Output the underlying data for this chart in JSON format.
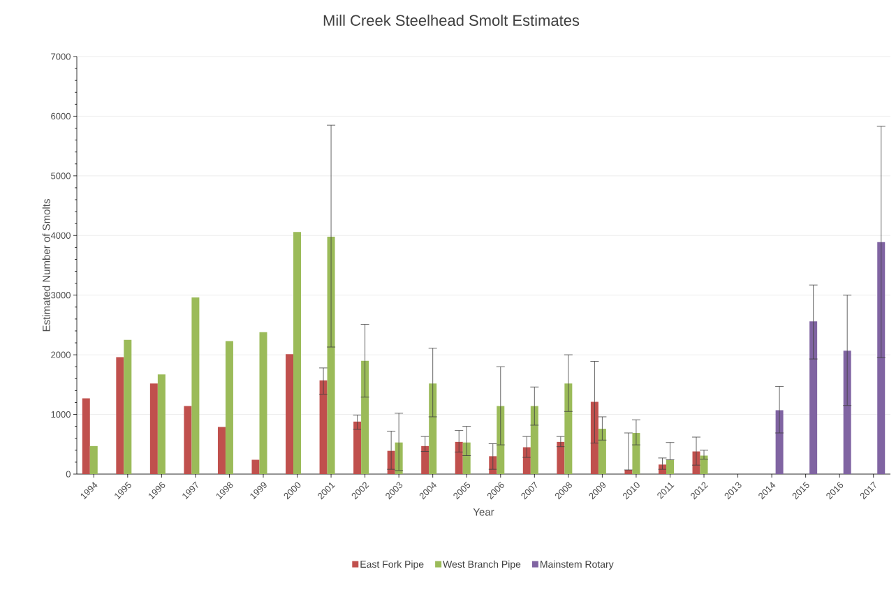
{
  "chart_data": {
    "type": "bar",
    "title": "Mill Creek Steelhead Smolt Estimates",
    "xlabel": "Year",
    "ylabel": "Estimated Number of Smolts",
    "categories": [
      "1994",
      "1995",
      "1996",
      "1997",
      "1998",
      "1999",
      "2000",
      "2001",
      "2002",
      "2003",
      "2004",
      "2005",
      "2006",
      "2007",
      "2008",
      "2009",
      "2010",
      "2011",
      "2012",
      "2013",
      "2014",
      "2015",
      "2016",
      "2017"
    ],
    "series": [
      {
        "name": "East Fork Pipe",
        "color": "#c0504d",
        "values": [
          1270,
          1960,
          1520,
          1140,
          790,
          240,
          2010,
          1570,
          880,
          390,
          470,
          540,
          300,
          450,
          540,
          1210,
          70,
          160,
          380,
          null,
          null,
          null,
          null,
          null
        ],
        "errors": [
          null,
          null,
          null,
          null,
          null,
          null,
          null,
          [
            1340,
            1780
          ],
          [
            750,
            990
          ],
          [
            80,
            720
          ],
          [
            380,
            630
          ],
          [
            370,
            730
          ],
          [
            80,
            510
          ],
          [
            280,
            630
          ],
          [
            460,
            630
          ],
          [
            520,
            1890
          ],
          [
            70,
            690
          ],
          [
            80,
            270
          ],
          [
            150,
            620
          ],
          null,
          null,
          null,
          null,
          null
        ]
      },
      {
        "name": "West Branch Pipe",
        "color": "#9bbb59",
        "values": [
          470,
          2250,
          1670,
          2960,
          2230,
          2380,
          4060,
          3980,
          1900,
          530,
          1520,
          530,
          1140,
          1140,
          1520,
          760,
          690,
          240,
          310,
          null,
          null,
          null,
          null,
          null
        ],
        "errors": [
          null,
          null,
          null,
          null,
          null,
          null,
          null,
          [
            2130,
            5850
          ],
          [
            1290,
            2510
          ],
          [
            60,
            1020
          ],
          [
            960,
            2110
          ],
          [
            310,
            800
          ],
          [
            490,
            1800
          ],
          [
            820,
            1460
          ],
          [
            1050,
            2000
          ],
          [
            570,
            960
          ],
          [
            490,
            910
          ],
          [
            240,
            530
          ],
          [
            250,
            400
          ],
          null,
          null,
          null,
          null,
          null
        ]
      },
      {
        "name": "Mainstem Rotary",
        "color": "#8064a2",
        "values": [
          null,
          null,
          null,
          null,
          null,
          null,
          null,
          null,
          null,
          null,
          null,
          null,
          null,
          null,
          null,
          null,
          null,
          null,
          null,
          null,
          1070,
          2560,
          2070,
          3890
        ],
        "errors": [
          null,
          null,
          null,
          null,
          null,
          null,
          null,
          null,
          null,
          null,
          null,
          null,
          null,
          null,
          null,
          null,
          null,
          null,
          null,
          null,
          [
            690,
            1470
          ],
          [
            1930,
            3170
          ],
          [
            1150,
            3000
          ],
          [
            1950,
            5830
          ]
        ]
      }
    ],
    "ylim": [
      0,
      7000
    ],
    "yticks": [
      0,
      1000,
      2000,
      3000,
      4000,
      5000,
      6000,
      7000
    ],
    "grid": "y",
    "legend": "bottom"
  }
}
